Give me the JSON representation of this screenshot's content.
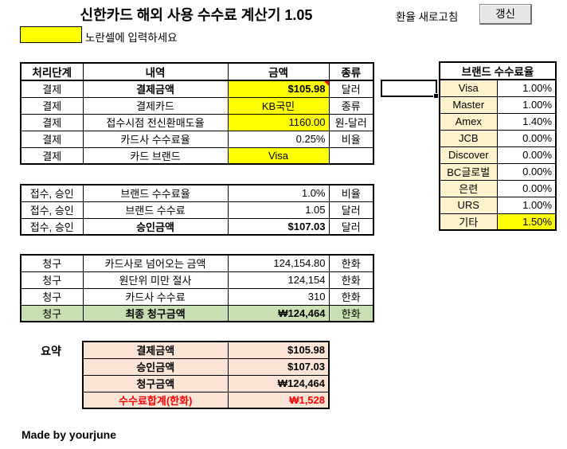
{
  "title": "신한카드 해외 사용 수수료 계산기 1.05",
  "refresh": {
    "label": "환율 새로고침",
    "button": "갱신"
  },
  "hint": "노란셀에 입력하세요",
  "colors": {
    "input_yellow": "#FFFF00",
    "brand_cream": "#FFF2CC",
    "final_green": "#C6E0B4",
    "summary_peach": "#FCE4D6",
    "alert_red": "#FF0000"
  },
  "main_table": {
    "headers": [
      "처리단계",
      "내역",
      "금액",
      "종류"
    ],
    "blocks": [
      {
        "rows": [
          {
            "stage": "결제",
            "desc": "결제금액",
            "amount": "$105.98",
            "type": "달러",
            "amount_bg": "#FFFF00",
            "bold": true,
            "comment": true
          },
          {
            "stage": "결제",
            "desc": "결제카드",
            "amount": "KB국민",
            "type": "종류",
            "amount_bg": "#FFFF00",
            "amount_align": "center"
          },
          {
            "stage": "결제",
            "desc": "접수시점 전신환매도율",
            "amount": "1160.00",
            "type": "원-달러",
            "amount_bg": "#FFFF00"
          },
          {
            "stage": "결제",
            "desc": "카드사 수수료율",
            "amount": "0.25%",
            "type": "비율"
          },
          {
            "stage": "결제",
            "desc": "카드 브랜드",
            "amount": "Visa",
            "type": "",
            "amount_bg": "#FFFF00",
            "amount_align": "center"
          }
        ]
      },
      {
        "rows": [
          {
            "stage": "접수, 승인",
            "desc": "브랜드 수수료율",
            "amount": "1.0%",
            "type": "비율"
          },
          {
            "stage": "접수, 승인",
            "desc": "브랜드 수수료",
            "amount": "1.05",
            "type": "달러"
          },
          {
            "stage": "접수, 승인",
            "desc": "승인금액",
            "amount": "$107.03",
            "type": "달러",
            "bold": true
          }
        ]
      },
      {
        "rows": [
          {
            "stage": "청구",
            "desc": "카드사로 넘어오는 금액",
            "amount": "124,154.80",
            "type": "한화"
          },
          {
            "stage": "청구",
            "desc": "원단위 미만 절사",
            "amount": "124,154",
            "type": "한화"
          },
          {
            "stage": "청구",
            "desc": "카드사 수수료",
            "amount": "310",
            "type": "한화"
          },
          {
            "stage": "청구",
            "desc": "최종 청구금액",
            "amount": "₩124,464",
            "type": "한화",
            "bold": true,
            "row_bg": "#C6E0B4"
          }
        ]
      }
    ]
  },
  "summary": {
    "label": "요약",
    "rows": [
      {
        "label": "결제금액",
        "value": "$105.98"
      },
      {
        "label": "승인금액",
        "value": "$107.03"
      },
      {
        "label": "청구금액",
        "value": "₩124,464"
      },
      {
        "label": "수수료합계(한화)",
        "value": "₩1,528",
        "color": "#FF0000"
      }
    ]
  },
  "brand_table": {
    "title": "브랜드 수수료율",
    "rows": [
      {
        "brand": "Visa",
        "rate": "1.00%"
      },
      {
        "brand": "Master",
        "rate": "1.00%"
      },
      {
        "brand": "Amex",
        "rate": "1.40%"
      },
      {
        "brand": "JCB",
        "rate": "0.00%"
      },
      {
        "brand": "Discover",
        "rate": "0.00%"
      },
      {
        "brand": "BC글로벌",
        "rate": "0.00%"
      },
      {
        "brand": "은련",
        "rate": "0.00%"
      },
      {
        "brand": "URS",
        "rate": "1.00%"
      },
      {
        "brand": "기타",
        "rate": "1.50%",
        "rate_bg": "#FFFF00"
      }
    ]
  },
  "footer": "Made by yourjune"
}
